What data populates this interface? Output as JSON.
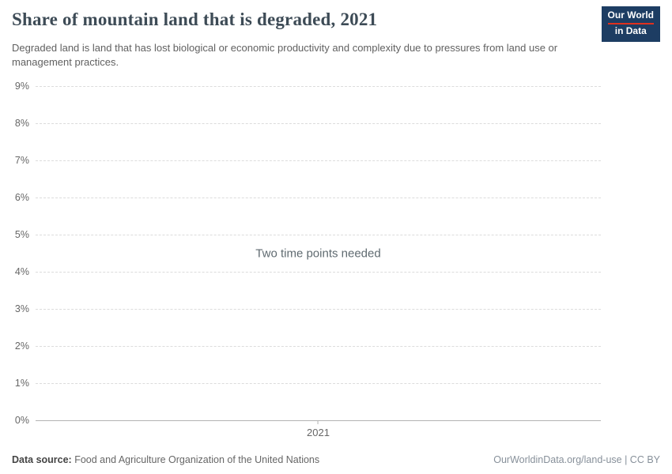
{
  "header": {
    "title": "Share of mountain land that is degraded, 2021",
    "subtitle": "Degraded land is land that has lost biological or economic productivity and complexity due to pressures from land use or management practices.",
    "logo": {
      "line1": "Our World",
      "line2": "in Data"
    }
  },
  "chart_data": {
    "type": "line",
    "title": "Share of mountain land that is degraded, 2021",
    "series": [],
    "x": [
      2021
    ],
    "xlabel": "",
    "ylabel": "",
    "ylim": [
      0,
      9
    ],
    "grid": "horizontal-dashed",
    "legend": "none",
    "empty_state_message": "Two time points needed",
    "yticks": [
      {
        "value": 0,
        "label": "0%"
      },
      {
        "value": 1,
        "label": "1%"
      },
      {
        "value": 2,
        "label": "2%"
      },
      {
        "value": 3,
        "label": "3%"
      },
      {
        "value": 4,
        "label": "4%"
      },
      {
        "value": 5,
        "label": "5%"
      },
      {
        "value": 6,
        "label": "6%"
      },
      {
        "value": 7,
        "label": "7%"
      },
      {
        "value": 8,
        "label": "8%"
      },
      {
        "value": 9,
        "label": "9%"
      }
    ],
    "xticks": [
      {
        "value": 2021,
        "label": "2021"
      }
    ]
  },
  "footer": {
    "source_label": "Data source:",
    "source_value": "Food and Agriculture Organization of the United Nations",
    "attribution": "OurWorldinData.org/land-use | CC BY"
  },
  "colors": {
    "title": "#3d4b56",
    "logo_bg": "#1d3d63",
    "logo_accent": "#e0301e",
    "grid": "#dcdcdc"
  }
}
